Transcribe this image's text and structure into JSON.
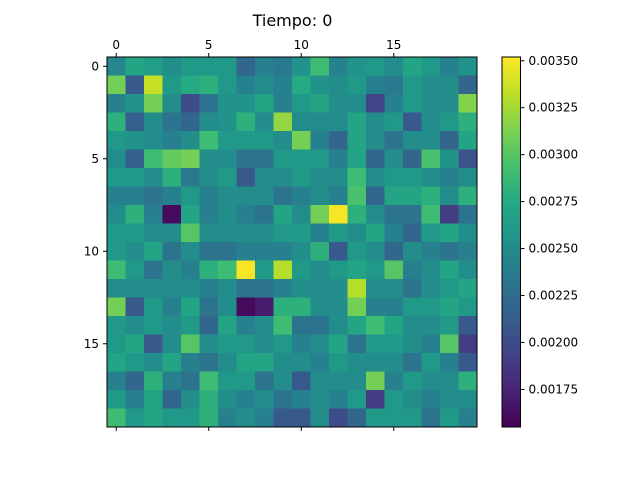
{
  "chart_data": {
    "type": "heatmap",
    "title": "Tiempo: 0",
    "xlabel": "",
    "ylabel": "",
    "rows": 20,
    "cols": 20,
    "x_ticks": [
      0,
      5,
      10,
      15
    ],
    "y_ticks": [
      0,
      5,
      10,
      15
    ],
    "x_axis_position": "top",
    "colormap": "viridis",
    "vmin": 0.00155,
    "vmax": 0.00352,
    "colorbar_ticks": [
      0.00175,
      0.002,
      0.00225,
      0.0025,
      0.00275,
      0.003,
      0.00325,
      0.0035
    ],
    "colorbar_tick_labels": [
      "0.00175",
      "0.00200",
      "0.00225",
      "0.00250",
      "0.00275",
      "0.00300",
      "0.00325",
      "0.00350"
    ],
    "values": [
      [
        0.00245,
        0.0027,
        0.00265,
        0.0025,
        0.0026,
        0.0026,
        0.0026,
        0.0022,
        0.0024,
        0.00235,
        0.00255,
        0.0029,
        0.0024,
        0.00255,
        0.0026,
        0.0025,
        0.0027,
        0.0026,
        0.0024,
        0.00255
      ],
      [
        0.0031,
        0.0021,
        0.00335,
        0.0026,
        0.00275,
        0.0028,
        0.0026,
        0.0024,
        0.0025,
        0.0024,
        0.00275,
        0.00255,
        0.0025,
        0.0026,
        0.0024,
        0.00235,
        0.0026,
        0.0025,
        0.0025,
        0.0022
      ],
      [
        0.0024,
        0.00255,
        0.0031,
        0.0025,
        0.002,
        0.0023,
        0.00255,
        0.00255,
        0.0027,
        0.0024,
        0.0026,
        0.0027,
        0.0025,
        0.0025,
        0.00195,
        0.0024,
        0.0026,
        0.0025,
        0.0025,
        0.00315
      ],
      [
        0.0028,
        0.00215,
        0.0025,
        0.0023,
        0.0022,
        0.0025,
        0.00255,
        0.0028,
        0.0025,
        0.0032,
        0.0025,
        0.0025,
        0.0025,
        0.0027,
        0.0025,
        0.0026,
        0.0021,
        0.0025,
        0.0026,
        0.0028
      ],
      [
        0.0026,
        0.00255,
        0.0025,
        0.0024,
        0.0025,
        0.0029,
        0.0026,
        0.0026,
        0.0026,
        0.0025,
        0.0031,
        0.0024,
        0.0022,
        0.0027,
        0.0025,
        0.0023,
        0.0025,
        0.0025,
        0.0022,
        0.0027
      ],
      [
        0.0025,
        0.00215,
        0.0029,
        0.00305,
        0.0031,
        0.0025,
        0.0025,
        0.0023,
        0.0023,
        0.0026,
        0.0026,
        0.0026,
        0.0024,
        0.0027,
        0.0022,
        0.0025,
        0.0022,
        0.00295,
        0.00255,
        0.00205
      ],
      [
        0.0026,
        0.0026,
        0.0025,
        0.0028,
        0.00235,
        0.0025,
        0.0026,
        0.0021,
        0.0025,
        0.0025,
        0.0026,
        0.0025,
        0.0025,
        0.0029,
        0.0025,
        0.0026,
        0.0026,
        0.0025,
        0.0024,
        0.0025
      ],
      [
        0.0024,
        0.0024,
        0.0023,
        0.0024,
        0.0026,
        0.0024,
        0.0025,
        0.0025,
        0.0025,
        0.0023,
        0.0024,
        0.0025,
        0.0024,
        0.00295,
        0.0022,
        0.0027,
        0.0027,
        0.0028,
        0.0025,
        0.0028
      ],
      [
        0.0025,
        0.0028,
        0.0024,
        0.0016,
        0.0027,
        0.0024,
        0.0025,
        0.0024,
        0.0023,
        0.0027,
        0.0025,
        0.0031,
        0.0035,
        0.0028,
        0.0025,
        0.0023,
        0.0023,
        0.0029,
        0.0019,
        0.0023
      ],
      [
        0.0026,
        0.0026,
        0.0025,
        0.0025,
        0.003,
        0.0025,
        0.0025,
        0.0025,
        0.0025,
        0.0026,
        0.0026,
        0.0024,
        0.0026,
        0.0025,
        0.0027,
        0.0024,
        0.0022,
        0.0026,
        0.0027,
        0.0025
      ],
      [
        0.0026,
        0.0025,
        0.0027,
        0.0023,
        0.0025,
        0.0023,
        0.0023,
        0.0024,
        0.0024,
        0.0024,
        0.0025,
        0.0028,
        0.0021,
        0.0026,
        0.0025,
        0.0022,
        0.0025,
        0.0024,
        0.0023,
        0.0024
      ],
      [
        0.0029,
        0.0026,
        0.0023,
        0.0025,
        0.0024,
        0.0028,
        0.0029,
        0.0035,
        0.0026,
        0.0033,
        0.0026,
        0.0025,
        0.0026,
        0.0027,
        0.0026,
        0.003,
        0.0024,
        0.0025,
        0.0027,
        0.0025
      ],
      [
        0.0025,
        0.0025,
        0.0025,
        0.0025,
        0.0025,
        0.0024,
        0.0025,
        0.0023,
        0.0023,
        0.0024,
        0.0025,
        0.0025,
        0.0025,
        0.0033,
        0.0025,
        0.0025,
        0.0023,
        0.0025,
        0.0026,
        0.0027
      ],
      [
        0.0031,
        0.0021,
        0.0026,
        0.0024,
        0.0027,
        0.0023,
        0.0025,
        0.0016,
        0.0017,
        0.0028,
        0.0028,
        0.0025,
        0.0025,
        0.0031,
        0.0024,
        0.0024,
        0.0026,
        0.0026,
        0.0027,
        0.0026
      ],
      [
        0.0026,
        0.0025,
        0.0026,
        0.0025,
        0.0026,
        0.0022,
        0.0027,
        0.0024,
        0.0025,
        0.0029,
        0.0023,
        0.0023,
        0.0025,
        0.0027,
        0.0029,
        0.0027,
        0.0025,
        0.0025,
        0.0026,
        0.0021
      ],
      [
        0.0026,
        0.0027,
        0.0021,
        0.0025,
        0.003,
        0.0025,
        0.0026,
        0.0026,
        0.0025,
        0.0026,
        0.0024,
        0.0025,
        0.0027,
        0.0023,
        0.0026,
        0.0026,
        0.0025,
        0.0024,
        0.003,
        0.0019
      ],
      [
        0.0027,
        0.0026,
        0.0025,
        0.0027,
        0.0024,
        0.0023,
        0.0025,
        0.0027,
        0.0027,
        0.0025,
        0.0025,
        0.0024,
        0.0026,
        0.0025,
        0.0025,
        0.0025,
        0.0023,
        0.0026,
        0.0024,
        0.0021
      ],
      [
        0.0024,
        0.0022,
        0.0028,
        0.0024,
        0.0023,
        0.0029,
        0.0026,
        0.0026,
        0.0023,
        0.0025,
        0.0021,
        0.0025,
        0.0025,
        0.0025,
        0.0031,
        0.0024,
        0.0026,
        0.0025,
        0.0025,
        0.0028
      ],
      [
        0.0026,
        0.0024,
        0.0027,
        0.0022,
        0.0025,
        0.0028,
        0.0025,
        0.0024,
        0.0025,
        0.0023,
        0.0024,
        0.0025,
        0.0024,
        0.0026,
        0.0019,
        0.0026,
        0.0025,
        0.0024,
        0.0025,
        0.0025
      ],
      [
        0.0029,
        0.0026,
        0.0027,
        0.0026,
        0.0026,
        0.0028,
        0.0024,
        0.0025,
        0.0024,
        0.0021,
        0.0021,
        0.0025,
        0.002,
        0.0022,
        0.0026,
        0.0026,
        0.0026,
        0.0023,
        0.0026,
        0.0024
      ]
    ]
  }
}
